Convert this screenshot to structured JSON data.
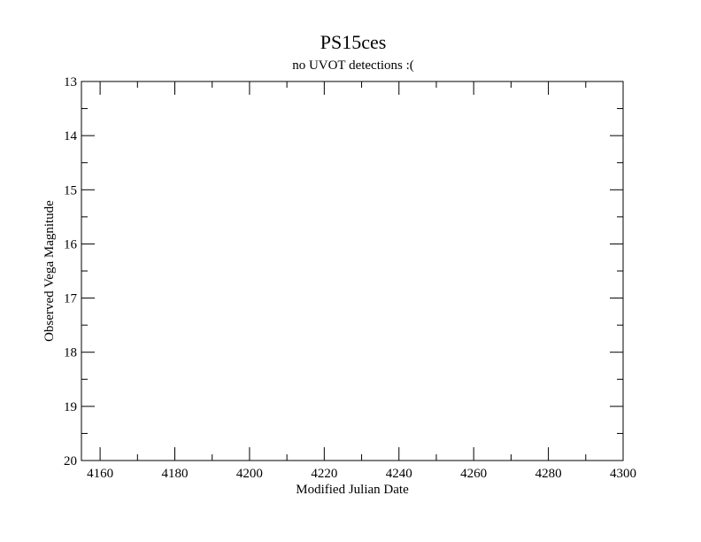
{
  "chart_data": {
    "type": "scatter",
    "title": "PS15ces",
    "subtitle": "no UVOT detections :(",
    "xlabel": "Modified Julian Date",
    "ylabel": "Observed Vega Magnitude",
    "xlim": [
      4155,
      4300
    ],
    "ylim": [
      20,
      13
    ],
    "y_inverted": true,
    "x_major_ticks": [
      4160,
      4180,
      4200,
      4220,
      4240,
      4260,
      4280,
      4300
    ],
    "x_minor_step": 10,
    "y_major_ticks": [
      13,
      14,
      15,
      16,
      17,
      18,
      19,
      20
    ],
    "y_minor_step": 0.5,
    "grid": false,
    "series": []
  }
}
